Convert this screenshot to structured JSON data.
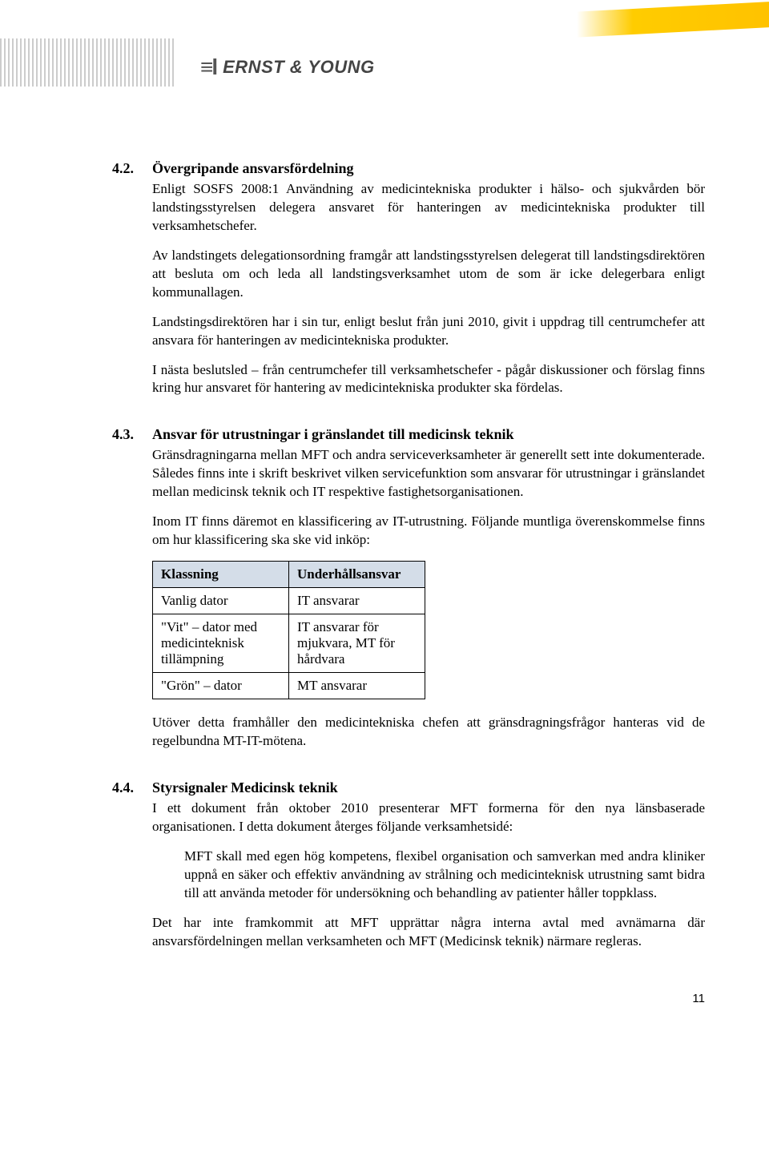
{
  "header": {
    "logo_text": "ERNST & YOUNG",
    "logo_mark": "≡l"
  },
  "sections": [
    {
      "number": "4.2.",
      "title": "Övergripande ansvarsfördelning",
      "paragraphs": [
        "Enligt SOSFS 2008:1 Användning av medicintekniska produkter i hälso- och sjukvården bör landstingsstyrelsen delegera ansvaret för hanteringen av medicintekniska produkter till verksamhetschefer.",
        "Av landstingets delegationsordning framgår att landstingsstyrelsen delegerat till landstingsdirektören att besluta om och leda all landstingsverksamhet utom de som är icke delegerbara enligt kommunallagen.",
        "Landstingsdirektören har i sin tur, enligt beslut från juni 2010, givit i uppdrag till centrumchefer att ansvara för hanteringen av medicintekniska produkter.",
        "I nästa beslutsled – från centrumchefer till verksamhetschefer - pågår diskussioner och förslag finns kring hur ansvaret för hantering av medicintekniska produkter ska fördelas."
      ]
    },
    {
      "number": "4.3.",
      "title": "Ansvar för utrustningar i gränslandet till medicinsk teknik",
      "paragraphs": [
        "Gränsdragningarna mellan MFT och andra serviceverksamheter är generellt sett inte dokumenterade. Således finns inte i skrift beskrivet vilken servicefunktion som ansvarar för utrustningar i gränslandet mellan medicinsk teknik och IT respektive fastighetsorganisationen.",
        "Inom IT finns däremot en klassificering av IT-utrustning. Följande muntliga överenskommelse finns om hur klassificering ska ske vid inköp:"
      ],
      "post_table_paragraph": "Utöver detta framhåller den medicintekniska chefen att gränsdragningsfrågor hanteras vid de regelbundna MT-IT-mötena."
    },
    {
      "number": "4.4.",
      "title": "Styrsignaler Medicinsk teknik",
      "intro_paragraph": "I ett dokument från oktober 2010 presenterar MFT formerna för den nya länsbaserade organisationen. I detta dokument återges följande verksamhetsidé:",
      "indented_paragraph": "MFT skall med egen hög kompetens, flexibel organisation och samverkan med andra kliniker uppnå en säker och effektiv användning av strålning och medicinteknisk utrustning samt bidra till att använda metoder för undersökning och behandling av patienter håller toppklass.",
      "closing_paragraph": "Det har inte framkommit att MFT upprättar några interna avtal med avnämarna där ansvarsfördelningen mellan verksamheten och MFT (Medicinsk teknik) närmare regleras."
    }
  ],
  "table": {
    "header_bg": "#d4dde8",
    "border_color": "#000000",
    "columns": [
      "Klassning",
      "Underhållsansvar"
    ],
    "rows": [
      [
        "Vanlig dator",
        "IT ansvarar"
      ],
      [
        "\"Vit\" – dator med medicinteknisk tillämpning",
        "IT ansvarar för mjukvara, MT för hårdvara"
      ],
      [
        "\"Grön\" – dator",
        "MT ansvarar"
      ]
    ]
  },
  "page_number": "11"
}
